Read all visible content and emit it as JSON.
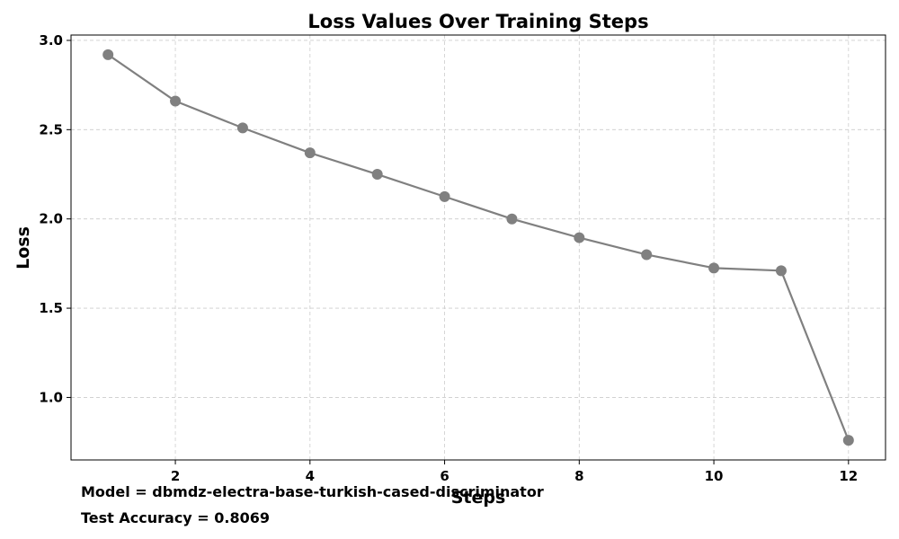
{
  "chart_data": {
    "type": "line",
    "title": "Loss Values Over Training Steps",
    "xlabel": "Steps",
    "ylabel": "Loss",
    "x": [
      1,
      2,
      3,
      4,
      5,
      6,
      7,
      8,
      9,
      10,
      11,
      12
    ],
    "series": [
      {
        "values": [
          2.92,
          2.66,
          2.51,
          2.37,
          2.25,
          2.125,
          2.0,
          1.895,
          1.8,
          1.725,
          1.71,
          0.76
        ],
        "color": "#808080"
      }
    ],
    "xlim": [
      0.45,
      12.55
    ],
    "ylim": [
      0.65,
      3.03
    ],
    "xticks": [
      2,
      4,
      6,
      8,
      10,
      12
    ],
    "yticks": [
      1.0,
      1.5,
      2.0,
      2.5,
      3.0
    ],
    "xtick_labels": [
      "2",
      "4",
      "6",
      "8",
      "10",
      "12"
    ],
    "ytick_labels": [
      "1.0",
      "1.5",
      "2.0",
      "2.5",
      "3.0"
    ],
    "grid": true,
    "legend": "none"
  },
  "annotations": {
    "model": "Model = dbmdz-electra-base-turkish-cased-discriminator",
    "accuracy": "Test Accuracy = 0.8069"
  }
}
